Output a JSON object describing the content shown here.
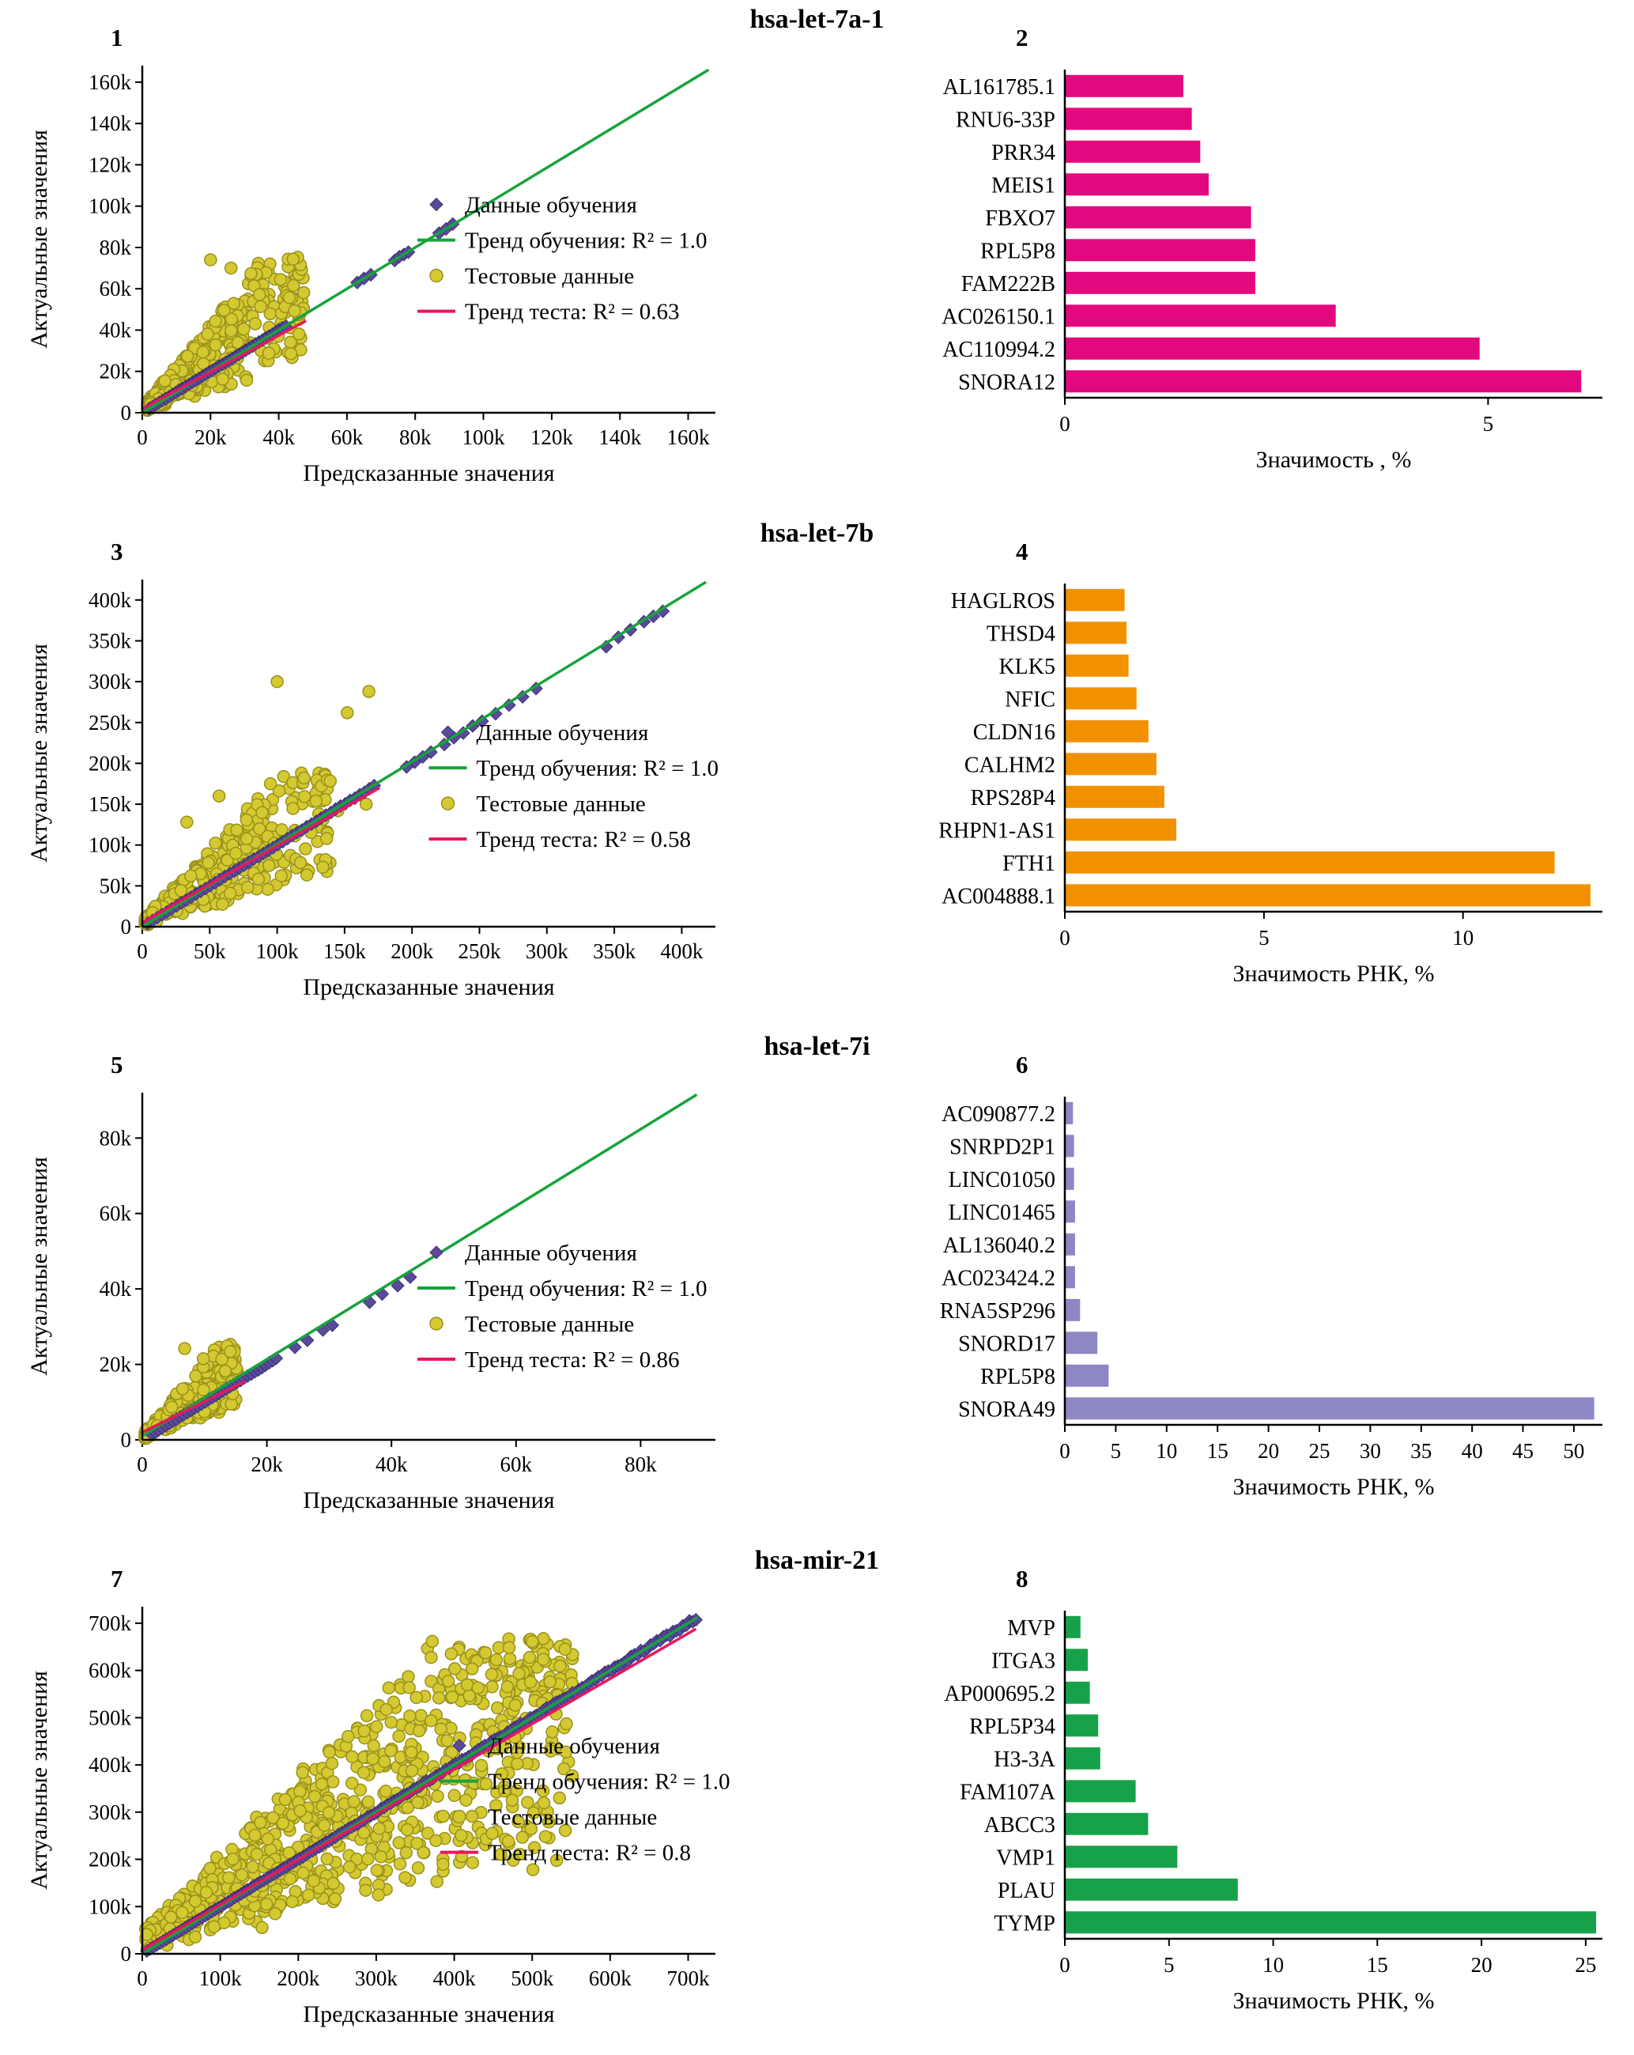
{
  "figure": {
    "background": "#ffffff",
    "rows": [
      {
        "title": "hsa-let-7a-1",
        "scatter_panel": "1",
        "bar_panel": "2",
        "scatter_index": 0,
        "bar_index": 1
      },
      {
        "title": "hsa-let-7b",
        "scatter_panel": "3",
        "bar_panel": "4",
        "scatter_index": 2,
        "bar_index": 3
      },
      {
        "title": "hsa-let-7i",
        "scatter_panel": "5",
        "bar_panel": "6",
        "scatter_index": 4,
        "bar_index": 5
      },
      {
        "title": "hsa-mir-21",
        "scatter_panel": "7",
        "bar_panel": "8",
        "scatter_index": 6,
        "bar_index": 7
      }
    ]
  },
  "colors": {
    "train_marker": "#5a4a9c",
    "train_marker_edge": "#3b3170",
    "test_marker": "#d4c930",
    "test_marker_edge": "#99911c",
    "train_trend": "#17a33c",
    "test_trend": "#e8175d",
    "axis": "#000000"
  },
  "chart_data": [
    {
      "panel": "1",
      "type": "scatter",
      "mirna": "hsa-let-7a-1",
      "xlabel": "Предсказанные значения",
      "ylabel": "Актуальные значения",
      "xlim": [
        0,
        168000
      ],
      "ylim": [
        0,
        168000
      ],
      "xticks": [
        0,
        20000,
        40000,
        60000,
        80000,
        100000,
        120000,
        140000,
        160000
      ],
      "xtick_labels": [
        "0",
        "20k",
        "40k",
        "60k",
        "80k",
        "100k",
        "120k",
        "140k",
        "160k"
      ],
      "yticks": [
        0,
        20000,
        40000,
        60000,
        80000,
        100000,
        120000,
        140000,
        160000
      ],
      "ytick_labels": [
        "0",
        "20k",
        "40k",
        "60k",
        "80k",
        "100k",
        "120k",
        "140k",
        "160k"
      ],
      "legend": [
        {
          "marker": "diamond",
          "label": "Данные обучения"
        },
        {
          "marker": "green-line",
          "label": "Тренд обучения: R² = 1.0"
        },
        {
          "marker": "circle",
          "label": "Тестовые данные"
        },
        {
          "marker": "pink-line",
          "label": "Тренд теста: R² = 0.63"
        }
      ],
      "legend_pos": [
        0.48,
        0.4
      ],
      "train_r2": "1.0",
      "test_r2": "0.63",
      "train_trend_line": [
        [
          0,
          0
        ],
        [
          166000,
          166000
        ]
      ],
      "test_trend_line": [
        [
          0,
          2000
        ],
        [
          48000,
          44500
        ]
      ],
      "train_point_segments": [
        [
          2000,
          42000,
          42
        ],
        [
          63000,
          67000,
          3
        ],
        [
          74000,
          78000,
          4
        ],
        [
          87000,
          91000,
          3
        ]
      ],
      "test_cloud": {
        "n": 400,
        "x0": 1500,
        "xs": 46000,
        "xp": 1.6,
        "k0": 0.5,
        "kr": 1.6,
        "noise": 3000,
        "ymax": 76000
      },
      "extra_test_points": [
        [
          20000,
          74000
        ],
        [
          26000,
          70000
        ]
      ],
      "seed": 11
    },
    {
      "panel": "2",
      "type": "bar",
      "mirna": "hsa-let-7a-1",
      "xlabel": "Значимость , %",
      "color": "#e2087e",
      "xlim": [
        0,
        6.35
      ],
      "xticks": [
        0,
        5
      ],
      "categories": [
        "AL161785.1",
        "RNU6-33P",
        "PRR34",
        "MEIS1",
        "FBXO7",
        "RPL5P8",
        "FAM222B",
        "AC026150.1",
        "AC110994.2",
        "SNORA12"
      ],
      "values": [
        1.4,
        1.5,
        1.6,
        1.7,
        2.2,
        2.25,
        2.25,
        3.2,
        4.9,
        6.1
      ]
    },
    {
      "panel": "3",
      "type": "scatter",
      "mirna": "hsa-let-7b",
      "xlabel": "Предсказанные значения",
      "ylabel": "Актуальные значения",
      "xlim": [
        0,
        425000
      ],
      "ylim": [
        0,
        425000
      ],
      "xticks": [
        0,
        50000,
        100000,
        150000,
        200000,
        250000,
        300000,
        350000,
        400000
      ],
      "xtick_labels": [
        "0",
        "50k",
        "100k",
        "150k",
        "200k",
        "250k",
        "300k",
        "350k",
        "400k"
      ],
      "yticks": [
        0,
        50000,
        100000,
        150000,
        200000,
        250000,
        300000,
        350000,
        400000
      ],
      "ytick_labels": [
        "0",
        "50k",
        "100k",
        "150k",
        "200k",
        "250k",
        "300k",
        "350k",
        "400k"
      ],
      "legend": [
        {
          "marker": "diamond",
          "label": "Данные обучения"
        },
        {
          "marker": "green-line",
          "label": "Тренд обучения: R² = 1.0"
        },
        {
          "marker": "circle",
          "label": "Тестовые данные"
        },
        {
          "marker": "pink-line",
          "label": "Тренд теста: R² = 0.58"
        }
      ],
      "legend_pos": [
        0.5,
        0.44
      ],
      "train_r2": "1.0",
      "test_r2": "0.58",
      "train_trend_line": [
        [
          0,
          0
        ],
        [
          418000,
          422000
        ]
      ],
      "test_trend_line": [
        [
          0,
          5000
        ],
        [
          176000,
          170000
        ]
      ],
      "train_point_segments": [
        [
          4000,
          172000,
          48
        ],
        [
          196000,
          214000,
          4
        ],
        [
          224000,
          252000,
          5
        ],
        [
          262000,
          292000,
          4
        ],
        [
          344000,
          362000,
          3
        ],
        [
          372000,
          386000,
          3
        ]
      ],
      "test_cloud": {
        "n": 340,
        "x0": 2000,
        "xs": 138000,
        "xp": 1.6,
        "k0": 0.45,
        "kr": 1.3,
        "noise": 9000,
        "ymax": 190000
      },
      "extra_test_points": [
        [
          100000,
          300000
        ],
        [
          152000,
          262000
        ],
        [
          168000,
          288000
        ],
        [
          57000,
          160000
        ],
        [
          120000,
          182000
        ],
        [
          33000,
          128000
        ],
        [
          145000,
          142000
        ],
        [
          166000,
          150000
        ],
        [
          95000,
          175000
        ]
      ],
      "seed": 33
    },
    {
      "panel": "4",
      "type": "bar",
      "mirna": "hsa-let-7b",
      "xlabel": "Значимость РНК, %",
      "color": "#f29100",
      "xlim": [
        0,
        13.5
      ],
      "xticks": [
        0,
        5,
        10
      ],
      "categories": [
        "HAGLROS",
        "THSD4",
        "KLK5",
        "NFIC",
        "CLDN16",
        "CALHM2",
        "RPS28P4",
        "RHPN1-AS1",
        "FTH1",
        "AC004888.1"
      ],
      "values": [
        1.5,
        1.55,
        1.6,
        1.8,
        2.1,
        2.3,
        2.5,
        2.8,
        12.3,
        13.2
      ]
    },
    {
      "panel": "5",
      "type": "scatter",
      "mirna": "hsa-let-7i",
      "xlabel": "Предсказанные значения",
      "ylabel": "Актуальные значения",
      "xlim": [
        0,
        92000
      ],
      "ylim": [
        0,
        92000
      ],
      "xticks": [
        0,
        20000,
        40000,
        60000,
        80000
      ],
      "xtick_labels": [
        "0",
        "20k",
        "40k",
        "60k",
        "80k"
      ],
      "yticks": [
        0,
        20000,
        40000,
        60000,
        80000
      ],
      "ytick_labels": [
        "0",
        "20k",
        "40k",
        "60k",
        "80k"
      ],
      "legend": [
        {
          "marker": "diamond",
          "label": "Данные обучения"
        },
        {
          "marker": "green-line",
          "label": "Тренд обучения: R² = 1.0"
        },
        {
          "marker": "circle",
          "label": "Тестовые данные"
        },
        {
          "marker": "pink-line",
          "label": "Тренд теста: R² = 0.86"
        }
      ],
      "legend_pos": [
        0.48,
        0.46
      ],
      "train_r2": "1.0",
      "test_r2": "0.86",
      "train_trend_line": [
        [
          0,
          1000
        ],
        [
          89000,
          91500
        ]
      ],
      "test_trend_line": [
        [
          0,
          2000
        ],
        [
          16500,
          15500
        ]
      ],
      "train_point_segments": [
        [
          1500,
          21500,
          36
        ],
        [
          24500,
          26500,
          2
        ],
        [
          29000,
          30500,
          2
        ],
        [
          36500,
          38500,
          2
        ],
        [
          41000,
          43000,
          2
        ]
      ],
      "test_cloud": {
        "n": 240,
        "x0": 400,
        "xs": 14800,
        "xp": 1.3,
        "k0": 0.55,
        "kr": 1.5,
        "noise": 1500,
        "ymax": 25500
      },
      "extra_test_points": [
        [
          6800,
          24200
        ],
        [
          9800,
          21500
        ]
      ],
      "seed": 55
    },
    {
      "panel": "6",
      "type": "bar",
      "mirna": "hsa-let-7i",
      "xlabel": "Значимость РНК, %",
      "color": "#8d87c3",
      "xlim": [
        0,
        52.8
      ],
      "xticks": [
        0,
        5,
        10,
        15,
        20,
        25,
        30,
        35,
        40,
        45,
        50
      ],
      "categories": [
        "AC090877.2",
        "SNRPD2P1",
        "LINC01050",
        "LINC01465",
        "AL136040.2",
        "AC023424.2",
        "RNA5SP296",
        "SNORD17",
        "RPL5P8",
        "SNORA49"
      ],
      "values": [
        0.8,
        0.9,
        0.9,
        1.0,
        1.0,
        1.0,
        1.5,
        3.2,
        4.3,
        52.0
      ]
    },
    {
      "panel": "7",
      "type": "scatter",
      "mirna": "hsa-mir-21",
      "xlabel": "Предсказанные значения",
      "ylabel": "Актуальные значения",
      "xlim": [
        0,
        735000
      ],
      "ylim": [
        0,
        735000
      ],
      "xticks": [
        0,
        100000,
        200000,
        300000,
        400000,
        500000,
        600000,
        700000
      ],
      "xtick_labels": [
        "0",
        "100k",
        "200k",
        "300k",
        "400k",
        "500k",
        "600k",
        "700k"
      ],
      "yticks": [
        0,
        100000,
        200000,
        300000,
        400000,
        500000,
        600000,
        700000
      ],
      "ytick_labels": [
        "0",
        "100k",
        "200k",
        "300k",
        "400k",
        "500k",
        "600k",
        "700k"
      ],
      "legend": [
        {
          "marker": "diamond",
          "label": "Данные обучения"
        },
        {
          "marker": "green-line",
          "label": "Тренд обучения: R² = 1.0"
        },
        {
          "marker": "circle",
          "label": "Тестовые данные"
        },
        {
          "marker": "pink-line",
          "label": "Тренд теста: R² = 0.8"
        }
      ],
      "legend_pos": [
        0.52,
        0.4
      ],
      "train_r2": "1.0",
      "test_r2": "0.8",
      "train_trend_line": [
        [
          0,
          0
        ],
        [
          712000,
          712000
        ]
      ],
      "test_trend_line": [
        [
          0,
          8000
        ],
        [
          710000,
          688000
        ]
      ],
      "train_point_segments": [
        [
          6000,
          710000,
          170
        ]
      ],
      "test_cloud": {
        "n": 850,
        "x0": 4000,
        "xs": 548000,
        "xp": 1.15,
        "k0": 0.35,
        "kr": 1.35,
        "noise": 50000,
        "ymax": 668000
      },
      "extra_test_points": [],
      "seed": 77
    },
    {
      "panel": "8",
      "type": "bar",
      "mirna": "hsa-mir-21",
      "xlabel": "Значимость РНК, %",
      "color": "#17a24a",
      "xlim": [
        0,
        25.8
      ],
      "xticks": [
        0,
        5,
        10,
        15,
        20,
        25
      ],
      "categories": [
        "MVP",
        "ITGA3",
        "AP000695.2",
        "RPL5P34",
        "H3-3A",
        "FAM107A",
        "ABCC3",
        "VMP1",
        "PLAU",
        "TYMP"
      ],
      "values": [
        0.75,
        1.1,
        1.2,
        1.6,
        1.7,
        3.4,
        4.0,
        5.4,
        8.3,
        25.5
      ]
    }
  ]
}
